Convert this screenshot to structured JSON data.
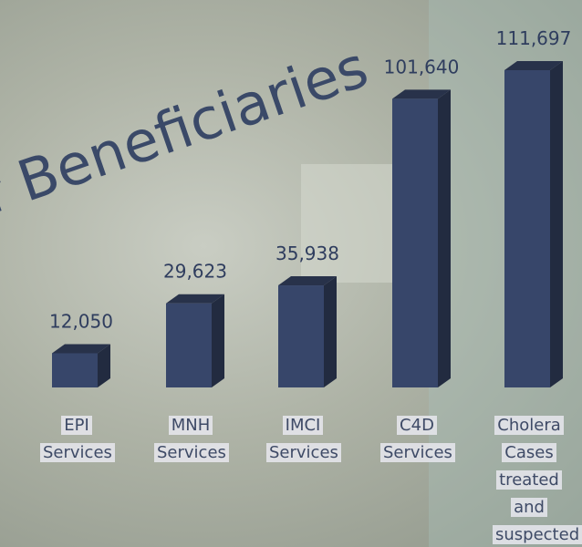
{
  "chart_data": {
    "type": "bar3d",
    "title": "f Beneficiaries",
    "categories": [
      "EPI Services",
      "MNH Services",
      "IMCI Services",
      "C4D Services",
      "Cholera Cases treated and suspected"
    ],
    "values": [
      12050,
      29623,
      35938,
      101640,
      111697
    ],
    "value_labels": [
      "12,050",
      "29,623",
      "35,938",
      "101,640",
      "111,697"
    ],
    "color": "#37466a"
  }
}
